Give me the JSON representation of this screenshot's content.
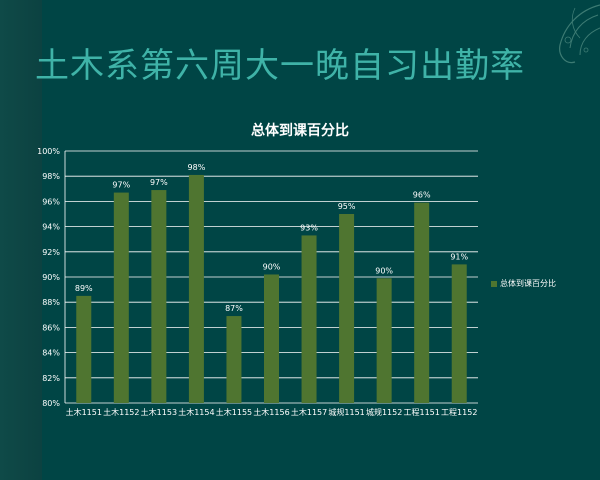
{
  "slide": {
    "title": "土木系第六周大一晚自习出勤率"
  },
  "chart_data": {
    "type": "bar",
    "title": "总体到课百分比",
    "categories": [
      "土木1151",
      "土木1152",
      "土木1153",
      "土木1154",
      "土木1155",
      "土木1156",
      "土木1157",
      "城规1151",
      "城规1152",
      "工程1151",
      "工程1152"
    ],
    "series": [
      {
        "name": "总体到课百分比",
        "values": [
          88.5,
          96.7,
          96.9,
          98.1,
          86.9,
          90.2,
          93.3,
          95.0,
          89.9,
          95.9,
          91.0
        ],
        "labels": [
          "89%",
          "97%",
          "97%",
          "98%",
          "87%",
          "90%",
          "93%",
          "95%",
          "90%",
          "96%",
          "91%"
        ]
      }
    ],
    "ylim": [
      80,
      100
    ],
    "yticks": [
      "80%",
      "82%",
      "84%",
      "86%",
      "88%",
      "90%",
      "92%",
      "94%",
      "96%",
      "98%",
      "100%"
    ],
    "xlabel": "",
    "ylabel": "",
    "grid": true,
    "legend_position": "right",
    "colors": {
      "bar": "#4f7530",
      "grid": "#ffffff",
      "text": "#ffffff"
    }
  }
}
